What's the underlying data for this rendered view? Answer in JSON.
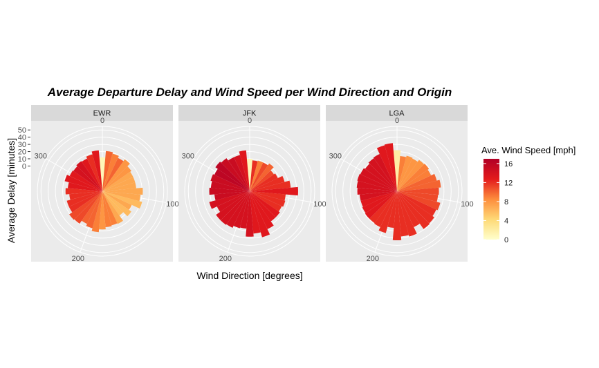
{
  "chart_data": {
    "type": "bar",
    "coord": "polar",
    "title": "Average Departure Delay and Wind Speed per Wind Direction and Origin",
    "xlabel": "Wind Direction [degrees]",
    "ylabel": "Average Delay [minutes]",
    "x_ticks": [
      "0",
      "100",
      "200",
      "300"
    ],
    "y_ticks": [
      "0",
      "10",
      "20",
      "30",
      "40",
      "50"
    ],
    "x_range": [
      0,
      360
    ],
    "y_range": [
      -35,
      55
    ],
    "grid": true,
    "legend": {
      "title": "Ave. Wind Speed [mph]",
      "position": "right",
      "labels": [
        "16",
        "12",
        "8",
        "4",
        "0"
      ],
      "min": 0,
      "max": 17
    },
    "directions": [
      0,
      10,
      20,
      30,
      40,
      50,
      60,
      70,
      80,
      90,
      100,
      110,
      120,
      130,
      140,
      150,
      160,
      170,
      180,
      190,
      200,
      210,
      220,
      230,
      240,
      250,
      260,
      270,
      280,
      290,
      300,
      310,
      320,
      330,
      340,
      350
    ],
    "facets": [
      {
        "label": "EWR",
        "delays": [
          12,
          21,
          19,
          16,
          19,
          14,
          12,
          12,
          12,
          21,
          18,
          22,
          10,
          14,
          6,
          15,
          14,
          15,
          18,
          22,
          18,
          15,
          20,
          21,
          16,
          16,
          11,
          16,
          13,
          19,
          15,
          14,
          16,
          15,
          18,
          22
        ],
        "wind_speeds": [
          1,
          10,
          9,
          10,
          8,
          8,
          7,
          7,
          7,
          7,
          7,
          6,
          7,
          6,
          6,
          7,
          9,
          9,
          8,
          9,
          10,
          10,
          11,
          11,
          12,
          12,
          12,
          12,
          13,
          13,
          13,
          14,
          14,
          13,
          12,
          13
        ]
      },
      {
        "label": "JFK",
        "delays": [
          10,
          8,
          9,
          9,
          12,
          6,
          8,
          15,
          22,
          32,
          15,
          16,
          14,
          16,
          16,
          23,
          31,
          24,
          28,
          17,
          18,
          21,
          22,
          22,
          15,
          23,
          14,
          21,
          19,
          21,
          19,
          23,
          21,
          17,
          17,
          22
        ],
        "wind_speeds": [
          1,
          12,
          9,
          11,
          10,
          11,
          12,
          12,
          12,
          13,
          12,
          12,
          12,
          13,
          13,
          13,
          13,
          13,
          14,
          14,
          14,
          14,
          14,
          14,
          14,
          14,
          15,
          15,
          15,
          15,
          16,
          16,
          15,
          15,
          14,
          13
        ]
      },
      {
        "label": "LGA",
        "delays": [
          22,
          14,
          16,
          15,
          18,
          19,
          17,
          22,
          26,
          23,
          22,
          27,
          25,
          28,
          29,
          20,
          30,
          28,
          33,
          16,
          25,
          20,
          19,
          19,
          18,
          17,
          17,
          20,
          21,
          22,
          21,
          19,
          21,
          22,
          31,
          32
        ],
        "wind_speeds": [
          2,
          9,
          8,
          8,
          8,
          9,
          9,
          10,
          10,
          11,
          11,
          11,
          12,
          12,
          12,
          12,
          12,
          12,
          12,
          12,
          12,
          12,
          12,
          13,
          13,
          13,
          14,
          14,
          14,
          14,
          14,
          14,
          14,
          14,
          13,
          13
        ]
      }
    ]
  }
}
